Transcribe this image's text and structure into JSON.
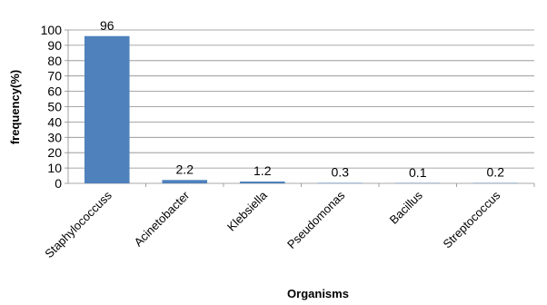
{
  "chart_data": {
    "type": "bar",
    "title": "",
    "xlabel": "Organisms",
    "ylabel": "frequency(%)",
    "ylim": [
      0,
      100
    ],
    "yticks": [
      0,
      10,
      20,
      30,
      40,
      50,
      60,
      70,
      80,
      90,
      100
    ],
    "grid": true,
    "legend": "none",
    "bar_color": "#4F81BD",
    "categories": [
      "Staphylococcuss",
      "Acinetobacter",
      "Klebsiella",
      "Pseudomonas",
      "Bacillus",
      "Streptococcus"
    ],
    "values": [
      96,
      2.2,
      1.2,
      0.3,
      0.1,
      0.2
    ],
    "data_labels": [
      "96",
      "2.2",
      "1.2",
      "0.3",
      "0.1",
      "0.2"
    ]
  }
}
